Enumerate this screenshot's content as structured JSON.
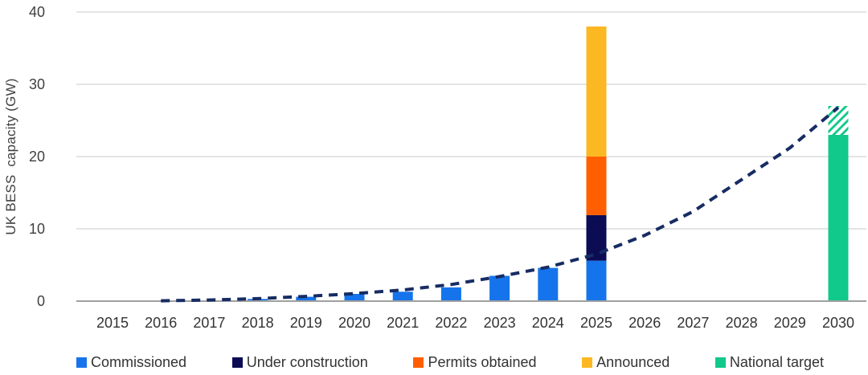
{
  "chart_data": {
    "type": "bar",
    "title": "",
    "ylabel": "UK BESS  capacity (GW)",
    "xlabel": "",
    "grid": true,
    "legend_position": "bottom",
    "ylim": [
      0,
      42
    ],
    "yticks": [
      0,
      10,
      20,
      30,
      40
    ],
    "categories": [
      2015,
      2016,
      2017,
      2018,
      2019,
      2020,
      2021,
      2022,
      2023,
      2024,
      2025,
      2026,
      2027,
      2028,
      2029,
      2030
    ],
    "stacked_series": [
      {
        "name": "Commissioned",
        "color": "#1574EB",
        "values": [
          0,
          0.05,
          0.1,
          0.3,
          0.6,
          1.0,
          1.3,
          1.9,
          3.5,
          4.6,
          5.6,
          0,
          0,
          0,
          0,
          0
        ]
      },
      {
        "name": "Under construction",
        "color": "#0C0C54",
        "values": [
          0,
          0,
          0,
          0,
          0,
          0,
          0,
          0,
          0,
          0,
          6.3,
          0,
          0,
          0,
          0,
          0
        ]
      },
      {
        "name": "Permits obtained",
        "color": "#FF5F00",
        "values": [
          0,
          0,
          0,
          0,
          0,
          0,
          0,
          0,
          0,
          0,
          8.1,
          0,
          0,
          0,
          0,
          0
        ]
      },
      {
        "name": "Announced",
        "color": "#FCB822",
        "values": [
          0,
          0,
          0,
          0,
          0,
          0,
          0,
          0,
          0,
          0,
          18.0,
          0,
          0,
          0,
          0,
          0
        ]
      },
      {
        "name": "National target",
        "color": "#10C98A",
        "values": [
          0,
          0,
          0,
          0,
          0,
          0,
          0,
          0,
          0,
          0,
          0,
          0,
          0,
          0,
          0,
          23.0
        ],
        "hatched_extra": [
          0,
          0,
          0,
          0,
          0,
          0,
          0,
          0,
          0,
          0,
          0,
          0,
          0,
          0,
          0,
          4.0
        ]
      }
    ],
    "trend_line": {
      "name": "growth-projection",
      "style": "dashed",
      "color": "#172C63",
      "x": [
        2016,
        2017,
        2018,
        2019,
        2020,
        2021,
        2022,
        2023,
        2024,
        2025,
        2026,
        2027,
        2028,
        2029,
        2030
      ],
      "y": [
        0.05,
        0.15,
        0.35,
        0.65,
        1.05,
        1.55,
        2.3,
        3.4,
        4.7,
        6.5,
        9.1,
        12.4,
        16.8,
        21.2,
        26.8
      ]
    }
  }
}
